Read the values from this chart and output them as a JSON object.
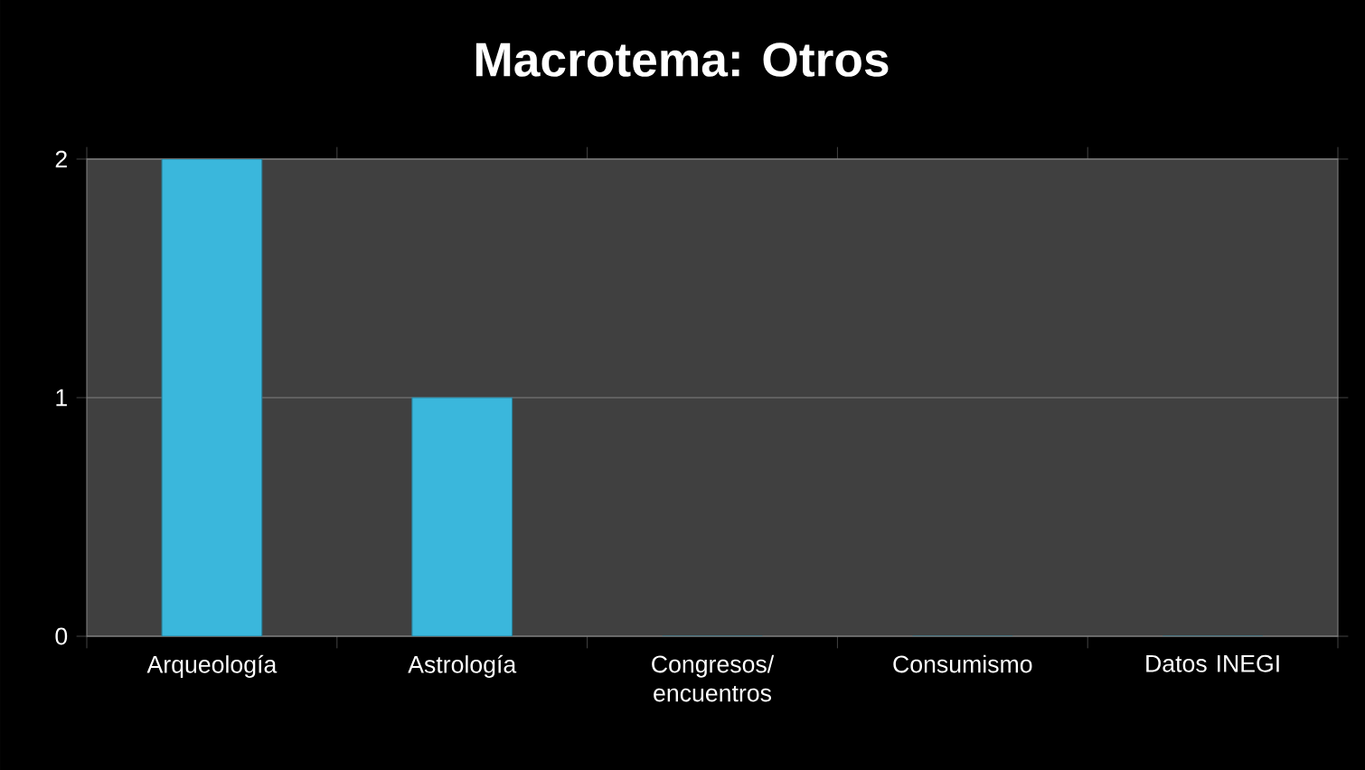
{
  "chart_data": {
    "type": "bar",
    "title": "Macrotema: Otros",
    "categories": [
      "Arqueología",
      "Astrología",
      "Congresos/ encuentros",
      "Consumismo",
      "Datos INEGI"
    ],
    "values": [
      2,
      1,
      0,
      0,
      0
    ],
    "color": "#3ab7dc",
    "ylim": [
      0,
      2
    ],
    "yticks": [
      0,
      1,
      2
    ],
    "grid": "y"
  }
}
